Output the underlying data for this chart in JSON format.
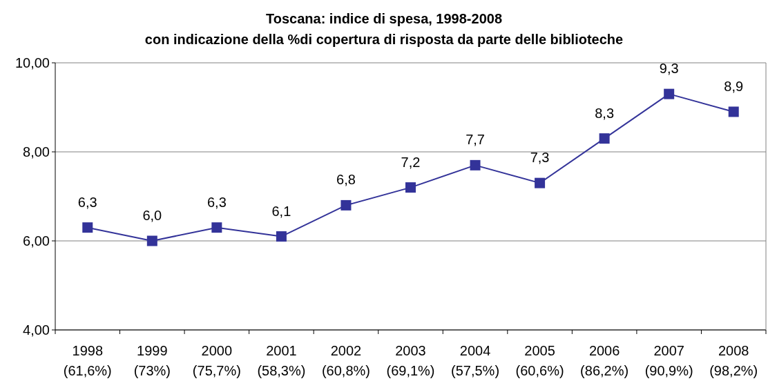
{
  "chart_data": {
    "type": "line",
    "title": "Toscana: indice di spesa, 1998-2008",
    "subtitle": "con indicazione della %di copertura di risposta da parte delle biblioteche",
    "categories": [
      "1998\n(61,6%)",
      "1999\n(73%)",
      "2000\n(75,7%)",
      "2001\n(58,3%)",
      "2002\n(60,8%)",
      "2003\n(69,1%)",
      "2004\n(57,5%)",
      "2005\n(60,6%)",
      "2006\n(86,2%)",
      "2007\n(90,9%)",
      "2008\n(98,2%)"
    ],
    "series": [
      {
        "color": "#333399",
        "values": [
          6.3,
          6.0,
          6.3,
          6.1,
          6.8,
          7.2,
          7.7,
          7.3,
          8.3,
          9.3,
          8.9
        ],
        "value_labels": [
          "6,3",
          "6,0",
          "6,3",
          "6,1",
          "6,8",
          "7,2",
          "7,7",
          "7,3",
          "8,3",
          "9,3",
          "8,9"
        ]
      }
    ],
    "ylim": [
      4,
      10
    ],
    "yticks": [
      {
        "value": 4,
        "label": "4,00"
      },
      {
        "value": 6,
        "label": "6,00"
      },
      {
        "value": 8,
        "label": "8,00"
      },
      {
        "value": 10,
        "label": "10,00"
      }
    ],
    "grid": "y",
    "marker": "square",
    "line_style": "solid"
  }
}
